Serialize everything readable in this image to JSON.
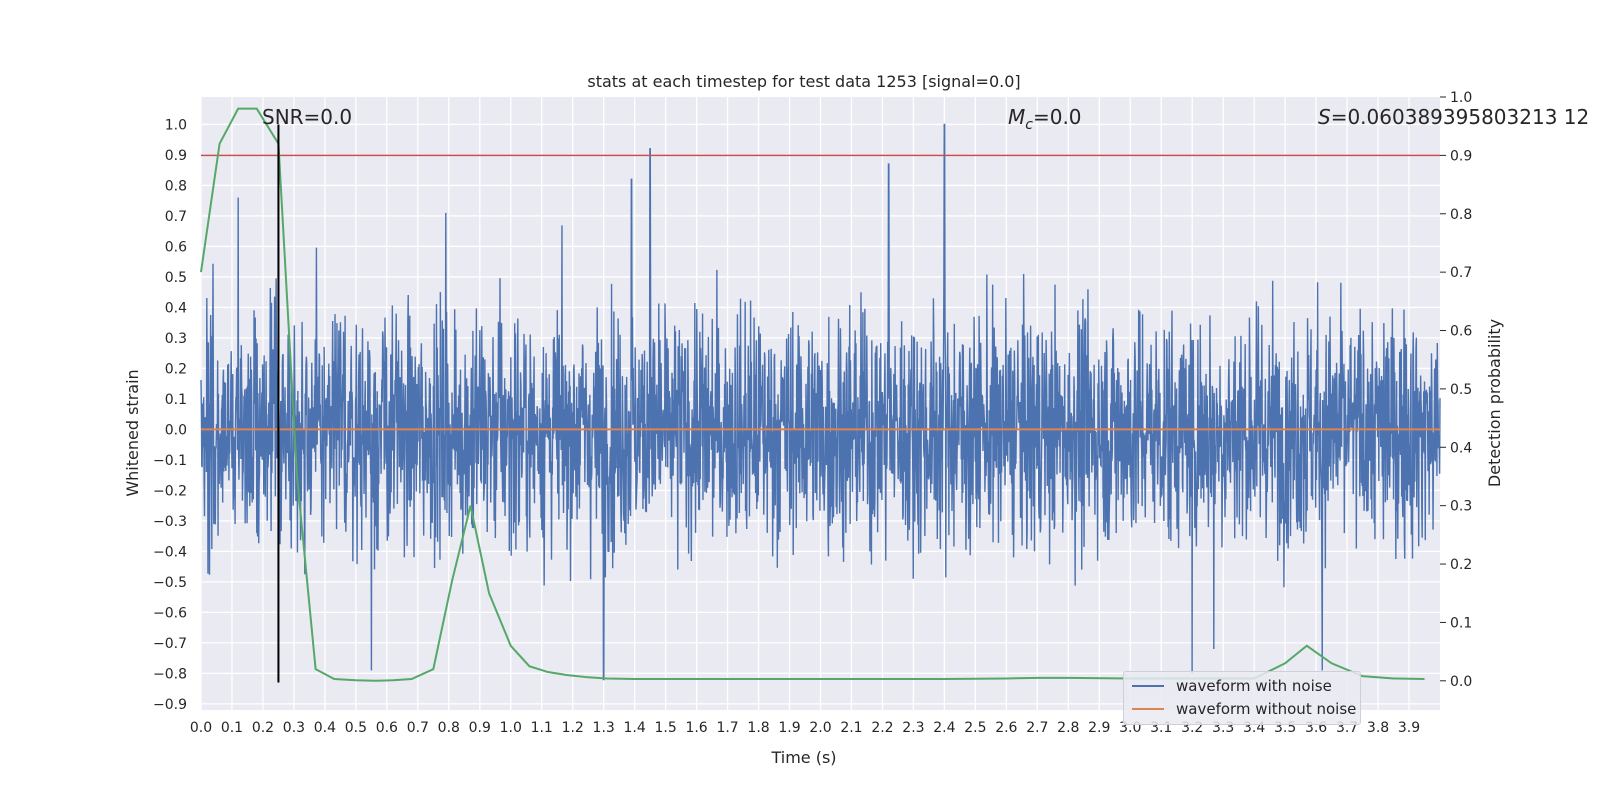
{
  "chart_data": {
    "type": "line",
    "title": "stats at each timestep for test data 1253 [signal=0.0]",
    "xlabel": "Time (s)",
    "ylabel": "Whitened strain",
    "ylabel_right": "Detection probability",
    "xlim": [
      0.0,
      4.0
    ],
    "ylim": [
      -0.92,
      1.09
    ],
    "ylim_right": [
      -0.05,
      1.0
    ],
    "x_ticks": [
      "0.0",
      "0.1",
      "0.2",
      "0.3",
      "0.4",
      "0.5",
      "0.6",
      "0.7",
      "0.8",
      "0.9",
      "1.0",
      "1.1",
      "1.2",
      "1.3",
      "1.4",
      "1.5",
      "1.6",
      "1.7",
      "1.8",
      "1.9",
      "2.0",
      "2.1",
      "2.2",
      "2.3",
      "2.4",
      "2.5",
      "2.6",
      "2.7",
      "2.8",
      "2.9",
      "3.0",
      "3.1",
      "3.2",
      "3.3",
      "3.4",
      "3.5",
      "3.6",
      "3.7",
      "3.8",
      "3.9"
    ],
    "y_ticks": [
      "1.0",
      "0.9",
      "0.8",
      "0.7",
      "0.6",
      "0.5",
      "0.4",
      "0.3",
      "0.2",
      "0.1",
      "0.0",
      "−0.1",
      "−0.2",
      "−0.3",
      "−0.4",
      "−0.5",
      "−0.6",
      "−0.7",
      "−0.8",
      "−0.9"
    ],
    "y_tick_values": [
      1.0,
      0.9,
      0.8,
      0.7,
      0.6,
      0.5,
      0.4,
      0.3,
      0.2,
      0.1,
      0.0,
      -0.1,
      -0.2,
      -0.3,
      -0.4,
      -0.5,
      -0.6,
      -0.7,
      -0.8,
      -0.9
    ],
    "y2_ticks": [
      "1.0",
      "0.9",
      "0.8",
      "0.7",
      "0.6",
      "0.5",
      "0.4",
      "0.3",
      "0.2",
      "0.1",
      "0.0"
    ],
    "y2_tick_values": [
      1.0,
      0.9,
      0.8,
      0.7,
      0.6,
      0.5,
      0.4,
      0.3,
      0.2,
      0.1,
      0.0
    ],
    "grid": true,
    "legend_position": "lower-right",
    "annotations": {
      "snr": "SNR=0.0",
      "mc_symbol": "M",
      "mc_sub": "c",
      "mc_value": "=0.0",
      "s_symbol": "S",
      "s_value": "=0.060389395803213 12"
    },
    "series": [
      {
        "name": "waveform with noise",
        "color": "#4c72b0",
        "axis": "left",
        "note_values": "dense noise trace",
        "spikes": [
          {
            "x": 0.12,
            "y": 0.76
          },
          {
            "x": 0.25,
            "y": 0.63
          },
          {
            "x": 0.55,
            "y": -0.79
          },
          {
            "x": 0.79,
            "y": 0.71
          },
          {
            "x": 1.3,
            "y": -0.82
          },
          {
            "x": 1.39,
            "y": 0.82
          },
          {
            "x": 1.45,
            "y": 0.92
          },
          {
            "x": 2.22,
            "y": 0.87
          },
          {
            "x": 2.4,
            "y": 1.0
          },
          {
            "x": 3.2,
            "y": -0.8
          },
          {
            "x": 3.27,
            "y": -0.72
          },
          {
            "x": 3.62,
            "y": -0.79
          }
        ]
      },
      {
        "name": "waveform without noise",
        "color": "#dd8452",
        "axis": "left",
        "x": [
          0.0,
          4.0
        ],
        "y": [
          0.0,
          0.0
        ]
      },
      {
        "name": "",
        "color": "#55a868",
        "axis": "right",
        "x": [
          0.0,
          0.06,
          0.12,
          0.18,
          0.25,
          0.31,
          0.37,
          0.43,
          0.5,
          0.56,
          0.62,
          0.68,
          0.75,
          0.81,
          0.87,
          0.93,
          1.0,
          1.06,
          1.12,
          1.18,
          1.25,
          1.31,
          1.4,
          1.6,
          1.8,
          2.0,
          2.2,
          2.4,
          2.6,
          2.7,
          2.8,
          3.0,
          3.2,
          3.4,
          3.5,
          3.57,
          3.65,
          3.75,
          3.85,
          3.95
        ],
        "y": [
          0.7,
          0.92,
          0.98,
          0.98,
          0.92,
          0.35,
          0.02,
          0.003,
          0.001,
          0.0,
          0.001,
          0.003,
          0.02,
          0.17,
          0.3,
          0.15,
          0.06,
          0.025,
          0.015,
          0.01,
          0.006,
          0.004,
          0.003,
          0.003,
          0.003,
          0.003,
          0.003,
          0.003,
          0.004,
          0.005,
          0.005,
          0.004,
          0.004,
          0.004,
          0.03,
          0.06,
          0.03,
          0.008,
          0.004,
          0.003
        ]
      }
    ],
    "hlines": [
      {
        "axis": "right",
        "value": 0.9,
        "color": "#c44e52"
      }
    ],
    "vlines": [
      {
        "x": 0.25,
        "ymin": -0.83,
        "ymax": 1.0,
        "color": "#000000"
      }
    ]
  }
}
